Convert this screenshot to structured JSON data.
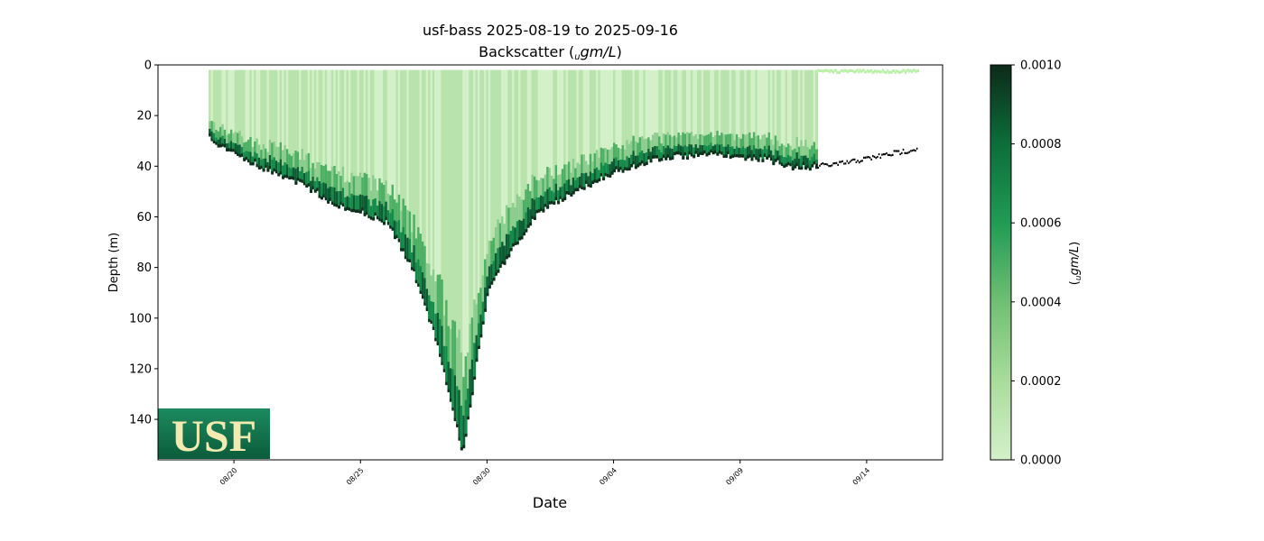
{
  "chart_data": {
    "type": "heatmap",
    "title": "usf-bass 2025-08-19 to 2025-09-16",
    "subtitle_prefix": "Backscatter (",
    "subtitle_unit_sub": "u",
    "subtitle_unit": "gm/L",
    "subtitle_suffix": ")",
    "xlabel": "Date",
    "ylabel": "Depth (m)",
    "x_range": [
      "2025-08-17",
      "2025-09-17"
    ],
    "ylim": [
      156,
      0
    ],
    "x_ticks": [
      "08/20",
      "08/25",
      "08/30",
      "09/04",
      "09/09",
      "09/14"
    ],
    "x_tick_dates": [
      "2025-08-20",
      "2025-08-25",
      "2025-08-30",
      "2025-09-04",
      "2025-09-09",
      "2025-09-14"
    ],
    "y_ticks": [
      0,
      20,
      40,
      60,
      80,
      100,
      120,
      140
    ],
    "colorbar": {
      "label": "(ugm/L)",
      "label_sub": "u",
      "label_unit": "gm/L",
      "range": [
        0.0,
        0.001
      ],
      "ticks": [
        "0.0000",
        "0.0002",
        "0.0004",
        "0.0006",
        "0.0008",
        "0.0010"
      ],
      "tick_values": [
        0.0,
        0.0002,
        0.0004,
        0.0006,
        0.0008,
        0.001
      ],
      "colormap": "Greens",
      "colors": [
        "#d4f0c9",
        "#b9e3ad",
        "#86c98a",
        "#3ea95a",
        "#138a49",
        "#0b5b33",
        "#0e2e1b"
      ]
    },
    "profile_bottom_depth": {
      "dates": [
        "2025-08-19",
        "2025-08-20",
        "2025-08-21",
        "2025-08-22",
        "2025-08-23",
        "2025-08-24",
        "2025-08-25",
        "2025-08-26",
        "2025-08-27",
        "2025-08-28",
        "2025-08-29",
        "2025-08-30",
        "2025-08-31",
        "2025-09-01",
        "2025-09-02",
        "2025-09-03",
        "2025-09-04",
        "2025-09-05",
        "2025-09-06",
        "2025-09-07",
        "2025-09-08",
        "2025-09-09",
        "2025-09-10",
        "2025-09-11",
        "2025-09-12",
        "2025-09-13",
        "2025-09-14",
        "2025-09-15",
        "2025-09-16"
      ],
      "depth": [
        29,
        35,
        40,
        44,
        49,
        55,
        58,
        62,
        80,
        110,
        153,
        88,
        72,
        58,
        52,
        47,
        42,
        39,
        36,
        36,
        35,
        36,
        37,
        40,
        40,
        39,
        37,
        35,
        33
      ],
      "data_end_date": "2025-09-12"
    },
    "surface_depth": 2
  },
  "logo": {
    "text": "USF",
    "background": "#13704a",
    "text_color": "#f2eab0"
  }
}
